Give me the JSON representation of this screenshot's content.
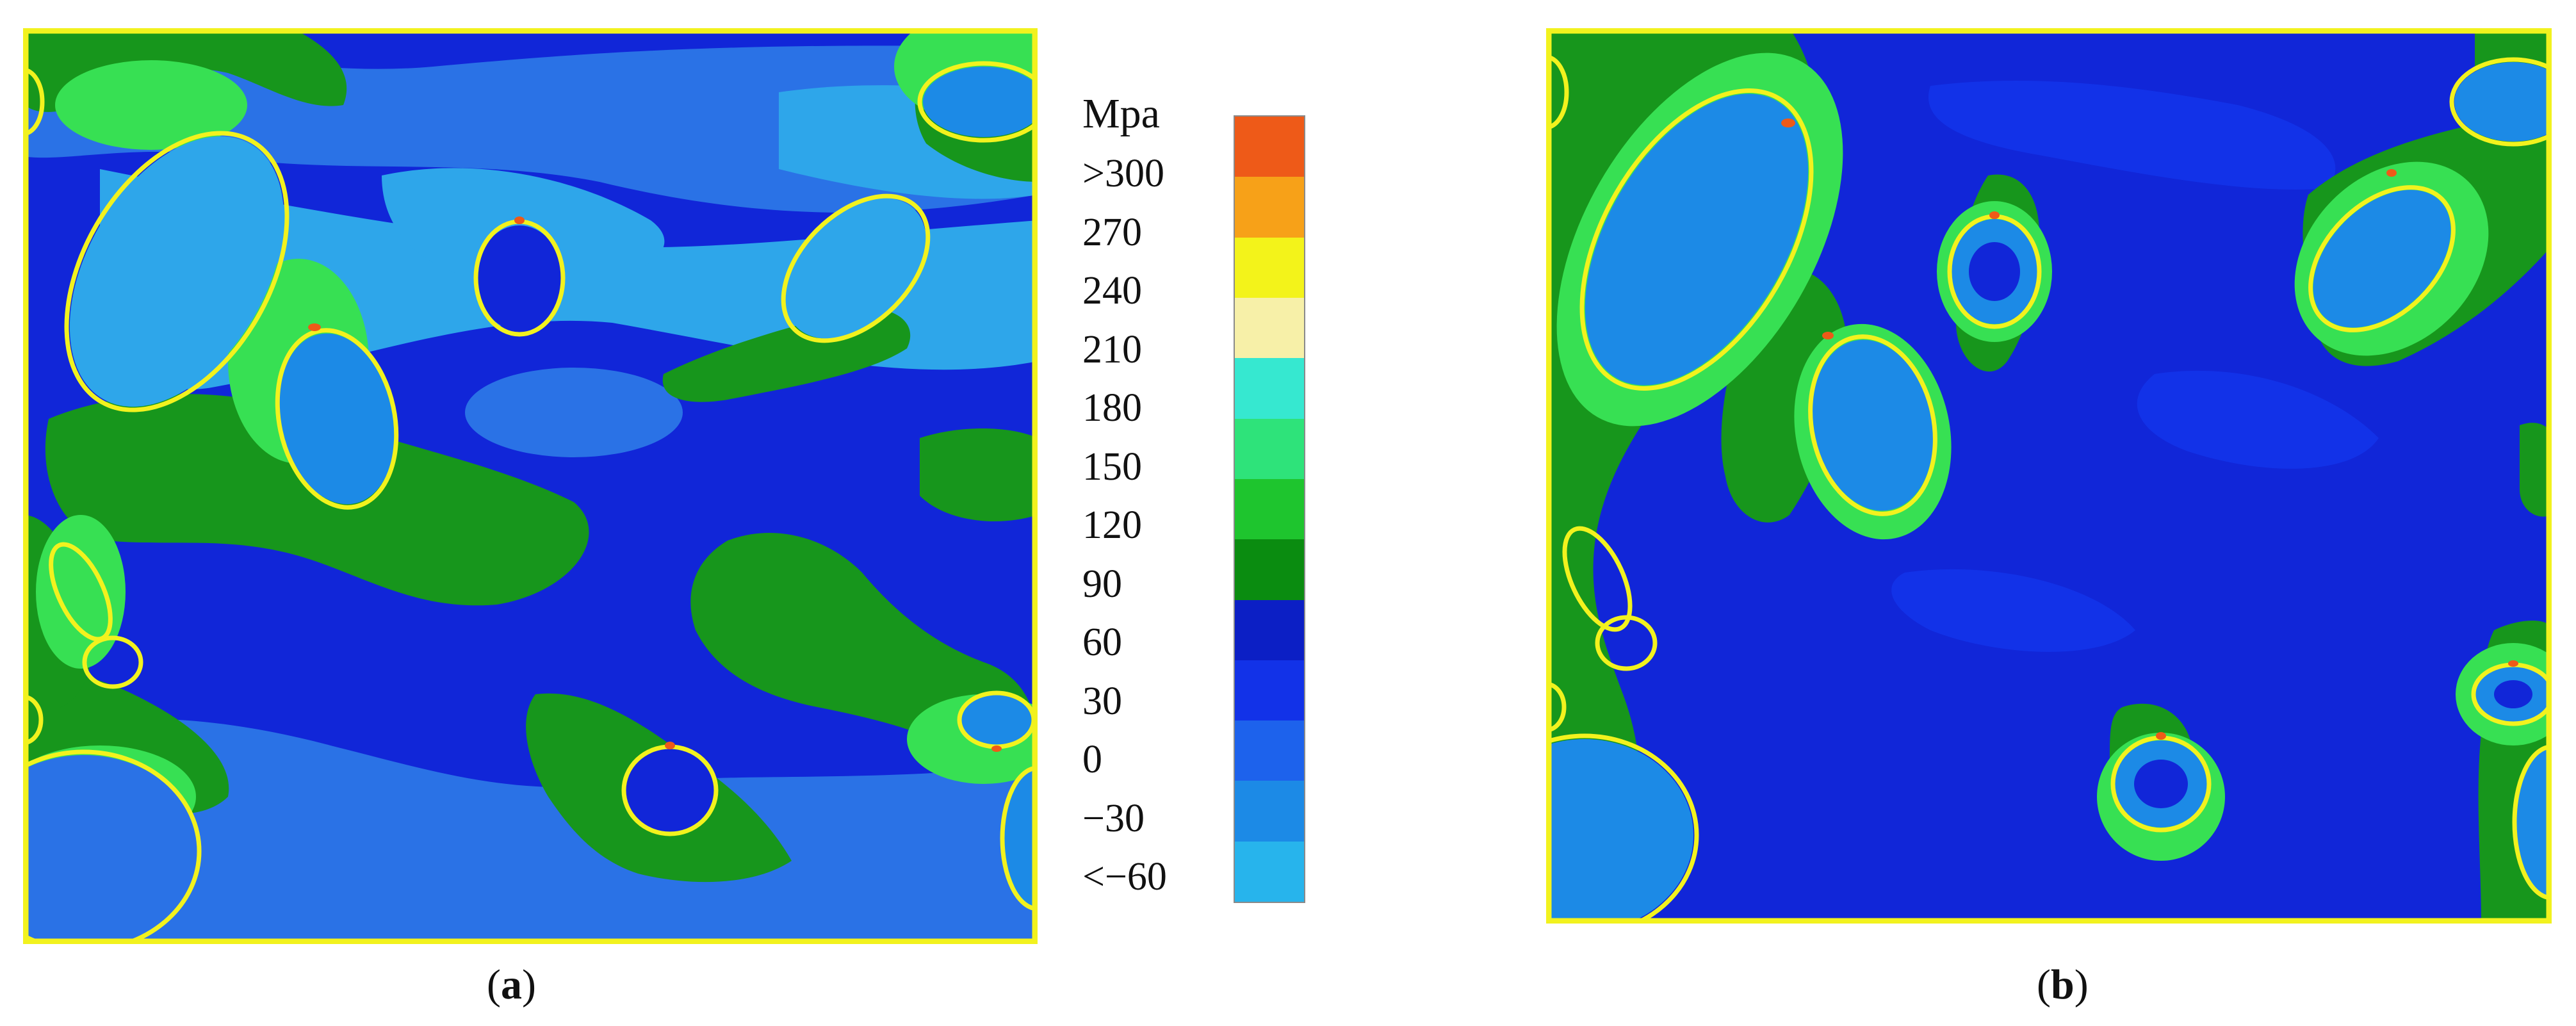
{
  "legend": {
    "unit": "Mpa",
    "labels": [
      ">300",
      "270",
      "240",
      "210",
      "180",
      "150",
      "120",
      "90",
      "60",
      "30",
      "0",
      "−30",
      "<−60"
    ],
    "colors": [
      "#ee5a18",
      "#f7a118",
      "#f3f31a",
      "#f7f0a8",
      "#36e8d0",
      "#2ee37a",
      "#1ec52e",
      "#0a8c10",
      "#0c1fc5",
      "#1232e8",
      "#1d62ec",
      "#1c8ae6",
      "#27b4ec"
    ]
  },
  "panels": [
    {
      "id": "a",
      "caption_open": "(",
      "caption_letter": "a",
      "caption_close": ")"
    },
    {
      "id": "b",
      "caption_open": "(",
      "caption_letter": "b",
      "caption_close": ")"
    }
  ],
  "colors": {
    "frame": "#f2f21e",
    "background_stress": "#1126d8",
    "green_stress": "#17961c",
    "light_green": "#37e053",
    "light_blue": "#2ea6ea",
    "mid_blue": "#2a72e6"
  }
}
